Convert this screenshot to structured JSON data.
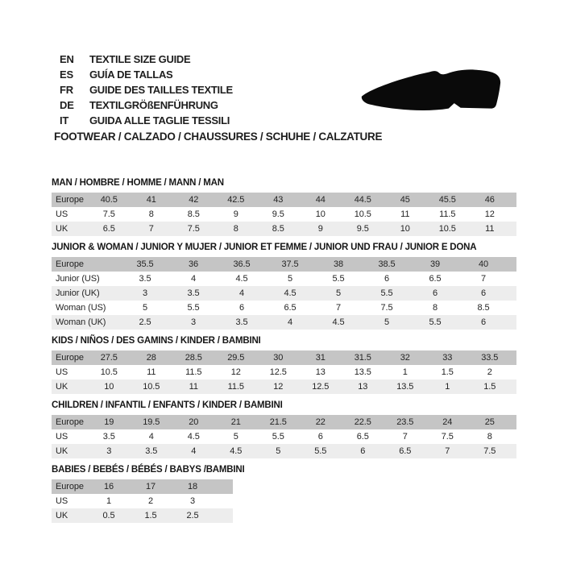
{
  "header": {
    "languages": [
      {
        "code": "EN",
        "label": "TEXTILE SIZE GUIDE"
      },
      {
        "code": "ES",
        "label": "GUÍA DE TALLAS"
      },
      {
        "code": "FR",
        "label": "GUIDE DES TAILLES TEXTILE"
      },
      {
        "code": "DE",
        "label": "TEXTILGRÖßENFÜHRUNG"
      },
      {
        "code": "IT",
        "label": "GUIDA ALLE TAGLIE TESSILI"
      }
    ],
    "category_title": "FOOTWEAR / CALZADO / CHAUSSURES / SCHUHE / CALZATURE",
    "icon": "dress-shoe-silhouette"
  },
  "colors": {
    "header_row_bg": "#c5c5c5",
    "alt_row_bg": "#ededed",
    "shoe_icon": "#0a0a0a"
  },
  "tables": [
    {
      "id": "man",
      "title": "MAN / HOMBRE / HOMME / MANN / MAN",
      "rows": [
        {
          "label": "Europe",
          "values": [
            "40.5",
            "41",
            "42",
            "42.5",
            "43",
            "44",
            "44.5",
            "45",
            "45.5",
            "46"
          ]
        },
        {
          "label": "US",
          "values": [
            "7.5",
            "8",
            "8.5",
            "9",
            "9.5",
            "10",
            "10.5",
            "11",
            "11.5",
            "12"
          ]
        },
        {
          "label": "UK",
          "values": [
            "6.5",
            "7",
            "7.5",
            "8",
            "8.5",
            "9",
            "9.5",
            "10",
            "10.5",
            "11"
          ]
        }
      ]
    },
    {
      "id": "junior-woman",
      "title": "JUNIOR & WOMAN / JUNIOR Y MUJER / JUNIOR ET FEMME / JUNIOR UND FRAU / JUNIOR E DONA",
      "rows": [
        {
          "label": "Europe",
          "values": [
            "35.5",
            "36",
            "36.5",
            "37.5",
            "38",
            "38.5",
            "39",
            "40"
          ]
        },
        {
          "label": "Junior (US)",
          "values": [
            "3.5",
            "4",
            "4.5",
            "5",
            "5.5",
            "6",
            "6.5",
            "7"
          ]
        },
        {
          "label": "Junior (UK)",
          "values": [
            "3",
            "3.5",
            "4",
            "4.5",
            "5",
            "5.5",
            "6",
            "6"
          ]
        },
        {
          "label": "Woman (US)",
          "values": [
            "5",
            "5.5",
            "6",
            "6.5",
            "7",
            "7.5",
            "8",
            "8.5"
          ]
        },
        {
          "label": "Woman (UK)",
          "values": [
            "2.5",
            "3",
            "3.5",
            "4",
            "4.5",
            "5",
            "5.5",
            "6"
          ]
        }
      ]
    },
    {
      "id": "kids",
      "title": "KIDS / NIÑOS / DES GAMINS / KINDER / BAMBINI",
      "rows": [
        {
          "label": "Europe",
          "values": [
            "27.5",
            "28",
            "28.5",
            "29.5",
            "30",
            "31",
            "31.5",
            "32",
            "33",
            "33.5"
          ]
        },
        {
          "label": "US",
          "values": [
            "10.5",
            "11",
            "11.5",
            "12",
            "12.5",
            "13",
            "13.5",
            "1",
            "1.5",
            "2"
          ]
        },
        {
          "label": "UK",
          "values": [
            "10",
            "10.5",
            "11",
            "11.5",
            "12",
            "12.5",
            "13",
            "13.5",
            "1",
            "1.5"
          ]
        }
      ]
    },
    {
      "id": "children",
      "title": "CHILDREN / INFANTIL / ENFANTS / KINDER / BAMBINI",
      "rows": [
        {
          "label": "Europe",
          "values": [
            "19",
            "19.5",
            "20",
            "21",
            "21.5",
            "22",
            "22.5",
            "23.5",
            "24",
            "25"
          ]
        },
        {
          "label": "US",
          "values": [
            "3.5",
            "4",
            "4.5",
            "5",
            "5.5",
            "6",
            "6.5",
            "7",
            "7.5",
            "8"
          ]
        },
        {
          "label": "UK",
          "values": [
            "3",
            "3.5",
            "4",
            "4.5",
            "5",
            "5.5",
            "6",
            "6.5",
            "7",
            "7.5"
          ]
        }
      ]
    },
    {
      "id": "babies",
      "title": "BABIES / BEBÉS / BÉBÉS / BABYS /BAMBINI",
      "rows": [
        {
          "label": "Europe",
          "values": [
            "16",
            "17",
            "18"
          ]
        },
        {
          "label": "US",
          "values": [
            "1",
            "2",
            "3"
          ]
        },
        {
          "label": "UK",
          "values": [
            "0.5",
            "1.5",
            "2.5"
          ]
        }
      ]
    }
  ]
}
